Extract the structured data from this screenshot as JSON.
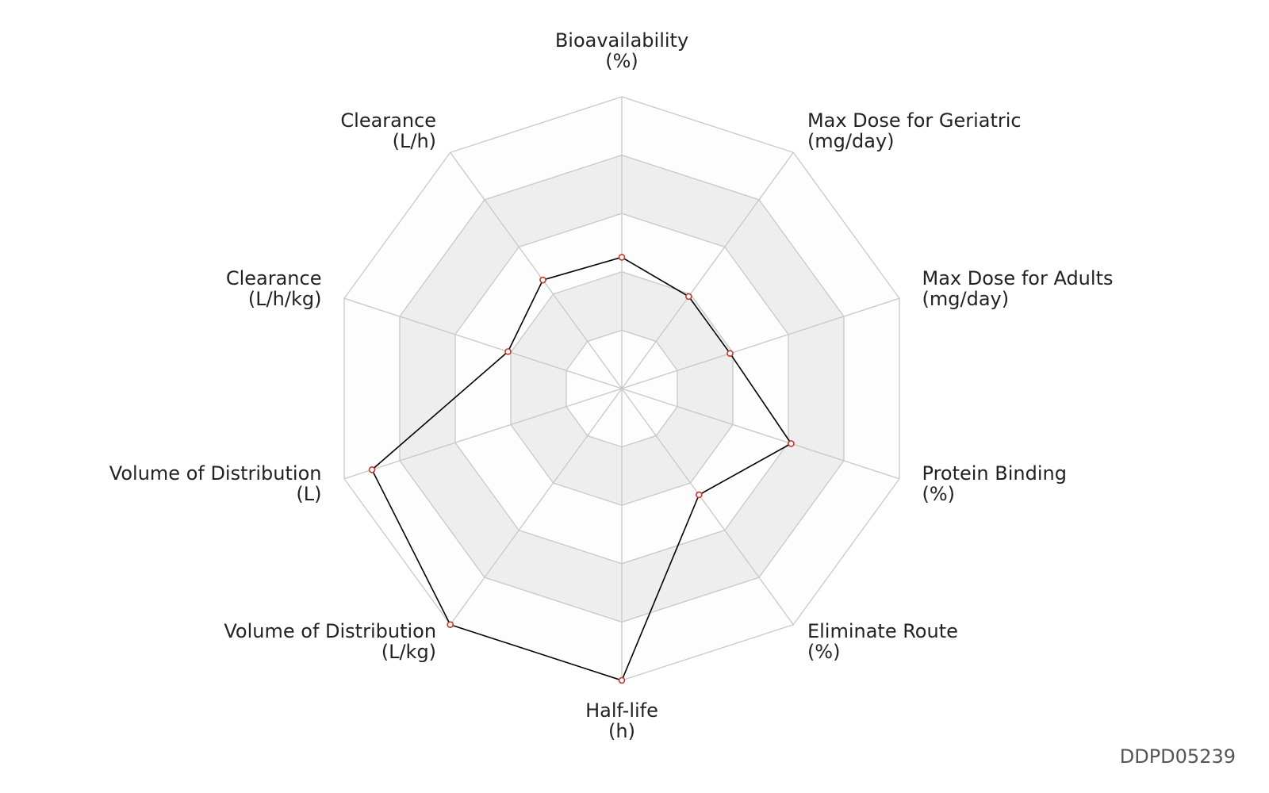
{
  "chart_data": {
    "type": "radar",
    "categories": [
      "Bioavailability",
      "Max Dose for Geriatric",
      "Max Dose for Adults",
      "Protein Binding",
      "Eliminate Route",
      "Half-life",
      "Volume of Distribution",
      "Volume of Distribution",
      "Clearance",
      "Clearance"
    ],
    "units": [
      "(%)",
      "(mg/day)",
      "(mg/day)",
      "(%)",
      "(%)",
      "(h)",
      "(L/kg)",
      "(L)",
      "(L/h/kg)",
      "(L/h)"
    ],
    "values": [
      0.45,
      0.39,
      0.39,
      0.61,
      0.45,
      1.0,
      1.0,
      0.9,
      0.41,
      0.46
    ],
    "rlim": [
      0,
      1
    ],
    "rticks": [
      0.2,
      0.4,
      0.6,
      0.8,
      1.0
    ],
    "line_color": "#000000",
    "marker_color": "#c0392b",
    "band_colors": [
      "#fdfdfd",
      "#eeeeee"
    ],
    "grid": true,
    "footnote": "DDPD05239"
  }
}
